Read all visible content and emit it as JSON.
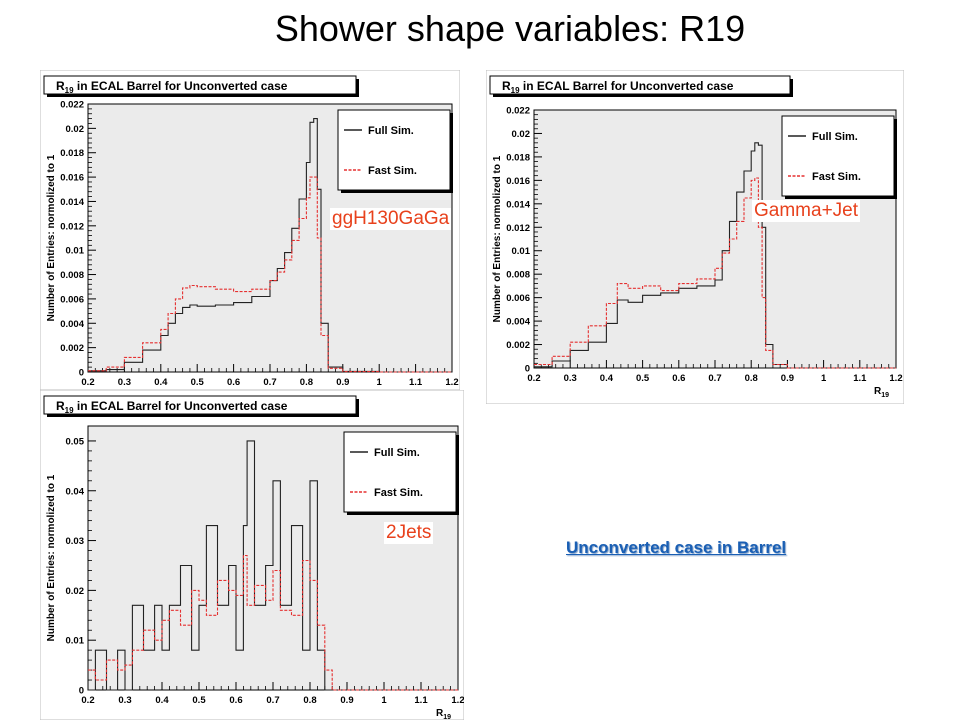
{
  "slide": {
    "title": "Shower shape variables:  R19",
    "footer_note": "Unconverted case in Barrel",
    "colors": {
      "label": "#e8411c",
      "footer": "#1a5fb4",
      "full_sim": "#222222",
      "fast_sim": "#e53030",
      "frame_bg": "#ebebeb"
    }
  },
  "chart_data": [
    {
      "type": "line",
      "panel": "top-left",
      "title_main": "R",
      "title_sub": "19",
      "title_rest": " in ECAL Barrel for Unconverted case",
      "ylabel": "Number of Entries: normolized to 1",
      "xlabel": "",
      "sample_label": "ggH130GaGa",
      "xlim": [
        0.2,
        1.2
      ],
      "ylim": [
        0,
        0.022
      ],
      "xticks": [
        "0.2",
        "0.3",
        "0.4",
        "0.5",
        "0.6",
        "0.7",
        "0.8",
        "0.9",
        "1",
        "1.1",
        "1.2"
      ],
      "yticks": [
        "0",
        "0.002",
        "0.004",
        "0.006",
        "0.008",
        "0.01",
        "0.012",
        "0.014",
        "0.016",
        "0.018",
        "0.02",
        "0.022"
      ],
      "legend": {
        "position": "top-right",
        "entries": [
          "Full Sim.",
          "Fast Sim."
        ]
      },
      "x": [
        0.2,
        0.25,
        0.3,
        0.35,
        0.4,
        0.42,
        0.44,
        0.46,
        0.48,
        0.5,
        0.55,
        0.6,
        0.65,
        0.7,
        0.72,
        0.74,
        0.76,
        0.78,
        0.8,
        0.81,
        0.82,
        0.83,
        0.84,
        0.86,
        0.9,
        1.0,
        1.2
      ],
      "series": [
        {
          "name": "Full Sim.",
          "values": [
            0.0001,
            0.0002,
            0.0008,
            0.0018,
            0.003,
            0.004,
            0.0048,
            0.0053,
            0.0055,
            0.0054,
            0.0055,
            0.0057,
            0.0062,
            0.0075,
            0.0085,
            0.0098,
            0.0118,
            0.0142,
            0.0172,
            0.0205,
            0.0208,
            0.015,
            0.004,
            0.0004,
            5e-05,
            0,
            0
          ]
        },
        {
          "name": "Fast Sim.",
          "values": [
            0.0001,
            0.0004,
            0.0012,
            0.0024,
            0.0035,
            0.0048,
            0.006,
            0.0069,
            0.0071,
            0.007,
            0.0068,
            0.0066,
            0.0068,
            0.0075,
            0.0082,
            0.0092,
            0.0108,
            0.0126,
            0.0143,
            0.016,
            0.016,
            0.011,
            0.003,
            0.0003,
            3e-05,
            0,
            0
          ]
        }
      ]
    },
    {
      "type": "line",
      "panel": "top-right",
      "title_main": "R",
      "title_sub": "19",
      "title_rest": " in ECAL Barrel for Unconverted case",
      "ylabel": "Number of Entries: normolized to 1",
      "xlabel": "R19",
      "sample_label": "Gamma+Jet",
      "xlim": [
        0.2,
        1.2
      ],
      "ylim": [
        0,
        0.022
      ],
      "xticks": [
        "0.2",
        "0.3",
        "0.4",
        "0.5",
        "0.6",
        "0.7",
        "0.8",
        "0.9",
        "1",
        "1.1",
        "1.2"
      ],
      "yticks": [
        "0",
        "0.002",
        "0.004",
        "0.006",
        "0.008",
        "0.01",
        "0.012",
        "0.014",
        "0.016",
        "0.018",
        "0.02",
        "0.022"
      ],
      "legend": {
        "position": "top-right",
        "entries": [
          "Full Sim.",
          "Fast Sim."
        ]
      },
      "x": [
        0.2,
        0.25,
        0.3,
        0.35,
        0.4,
        0.43,
        0.46,
        0.5,
        0.55,
        0.6,
        0.65,
        0.7,
        0.72,
        0.74,
        0.76,
        0.78,
        0.8,
        0.81,
        0.82,
        0.83,
        0.84,
        0.86,
        0.9,
        1.2
      ],
      "series": [
        {
          "name": "Full Sim.",
          "values": [
            0.0001,
            0.0006,
            0.0015,
            0.0022,
            0.0038,
            0.0058,
            0.0056,
            0.0062,
            0.0064,
            0.0068,
            0.007,
            0.0075,
            0.01,
            0.0125,
            0.015,
            0.0168,
            0.0185,
            0.0192,
            0.019,
            0.012,
            0.002,
            0.0003,
            0,
            0
          ]
        },
        {
          "name": "Fast Sim.",
          "values": [
            0.0003,
            0.001,
            0.0022,
            0.0036,
            0.0055,
            0.0072,
            0.0068,
            0.007,
            0.0066,
            0.0072,
            0.0076,
            0.0085,
            0.0098,
            0.011,
            0.0125,
            0.0145,
            0.016,
            0.0162,
            0.012,
            0.006,
            0.0015,
            0.0003,
            0,
            0
          ]
        }
      ]
    },
    {
      "type": "line",
      "panel": "bottom-left",
      "title_main": "R",
      "title_sub": "19",
      "title_rest": " in ECAL Barrel for Unconverted case",
      "ylabel": "Number of Entries: normolized to 1",
      "xlabel": "R19",
      "sample_label": "2Jets",
      "xlim": [
        0.2,
        1.2
      ],
      "ylim": [
        0,
        0.053
      ],
      "xticks": [
        "0.2",
        "0.3",
        "0.4",
        "0.5",
        "0.6",
        "0.7",
        "0.8",
        "0.9",
        "1",
        "1.1",
        "1.2"
      ],
      "yticks": [
        "0",
        "0.01",
        "0.02",
        "0.03",
        "0.04",
        "0.05"
      ],
      "legend": {
        "position": "top-right",
        "entries": [
          "Full Sim.",
          "Fast Sim."
        ]
      },
      "x": [
        0.2,
        0.22,
        0.25,
        0.28,
        0.3,
        0.32,
        0.35,
        0.38,
        0.4,
        0.42,
        0.45,
        0.48,
        0.5,
        0.52,
        0.55,
        0.58,
        0.6,
        0.62,
        0.63,
        0.65,
        0.68,
        0.7,
        0.72,
        0.75,
        0.78,
        0.8,
        0.82,
        0.84,
        0.86,
        0.9,
        1.2
      ],
      "series": [
        {
          "name": "Full Sim.",
          "values": [
            0,
            0.008,
            0,
            0.008,
            0,
            0.017,
            0.008,
            0.017,
            0.008,
            0.017,
            0.025,
            0.008,
            0.017,
            0.033,
            0.017,
            0.025,
            0.008,
            0.033,
            0.05,
            0.017,
            0.025,
            0.042,
            0.017,
            0.033,
            0.008,
            0.042,
            0.008,
            0,
            0,
            0,
            0
          ]
        },
        {
          "name": "Fast Sim.",
          "values": [
            0.004,
            0.002,
            0.006,
            0.004,
            0.005,
            0.008,
            0.012,
            0.01,
            0.014,
            0.016,
            0.013,
            0.02,
            0.018,
            0.015,
            0.022,
            0.02,
            0.019,
            0.027,
            0.017,
            0.021,
            0.018,
            0.024,
            0.016,
            0.015,
            0.026,
            0.022,
            0.013,
            0.004,
            0,
            0,
            0
          ]
        }
      ]
    }
  ]
}
